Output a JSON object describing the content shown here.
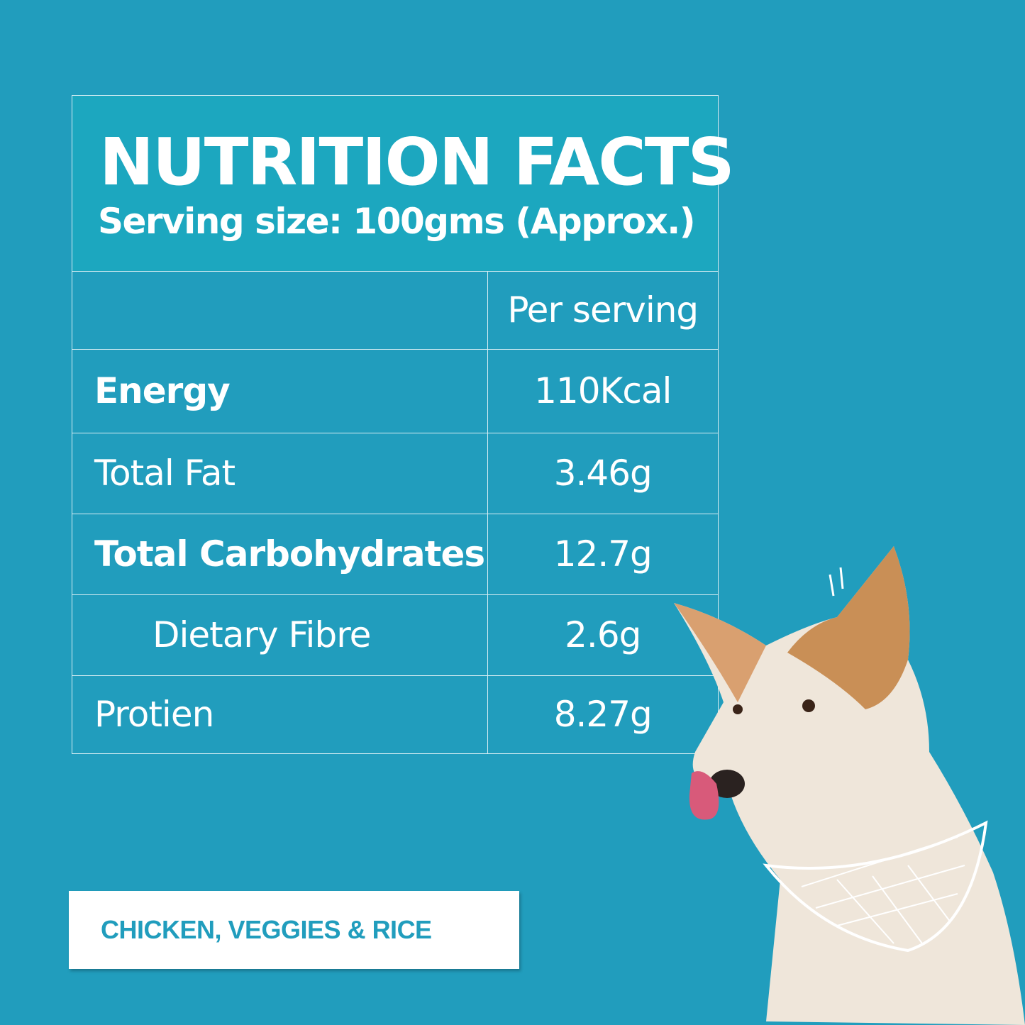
{
  "header": {
    "title": "NUTRITION FACTS",
    "serving_size": "Serving size: 100gms (Approx.)"
  },
  "table": {
    "column_header": "Per serving",
    "rows": [
      {
        "label": "Energy",
        "value": "110Kcal",
        "bold": true
      },
      {
        "label": "Total Fat",
        "value": "3.46g",
        "bold": false
      },
      {
        "label": "Total Carbohydrates",
        "value": "12.7g",
        "bold": true
      },
      {
        "label": "Dietary Fibre",
        "value": "2.6g",
        "bold": false,
        "indented": true
      },
      {
        "label": "Protien",
        "value": "8.27g",
        "bold": false
      }
    ]
  },
  "badge": {
    "label": "CHICKEN, VEGGIES & RICE"
  },
  "colors": {
    "background": "#219dbd",
    "header": "#1ca7bf",
    "badge_text": "#219dbd"
  },
  "illustration": "dog-with-bandana"
}
